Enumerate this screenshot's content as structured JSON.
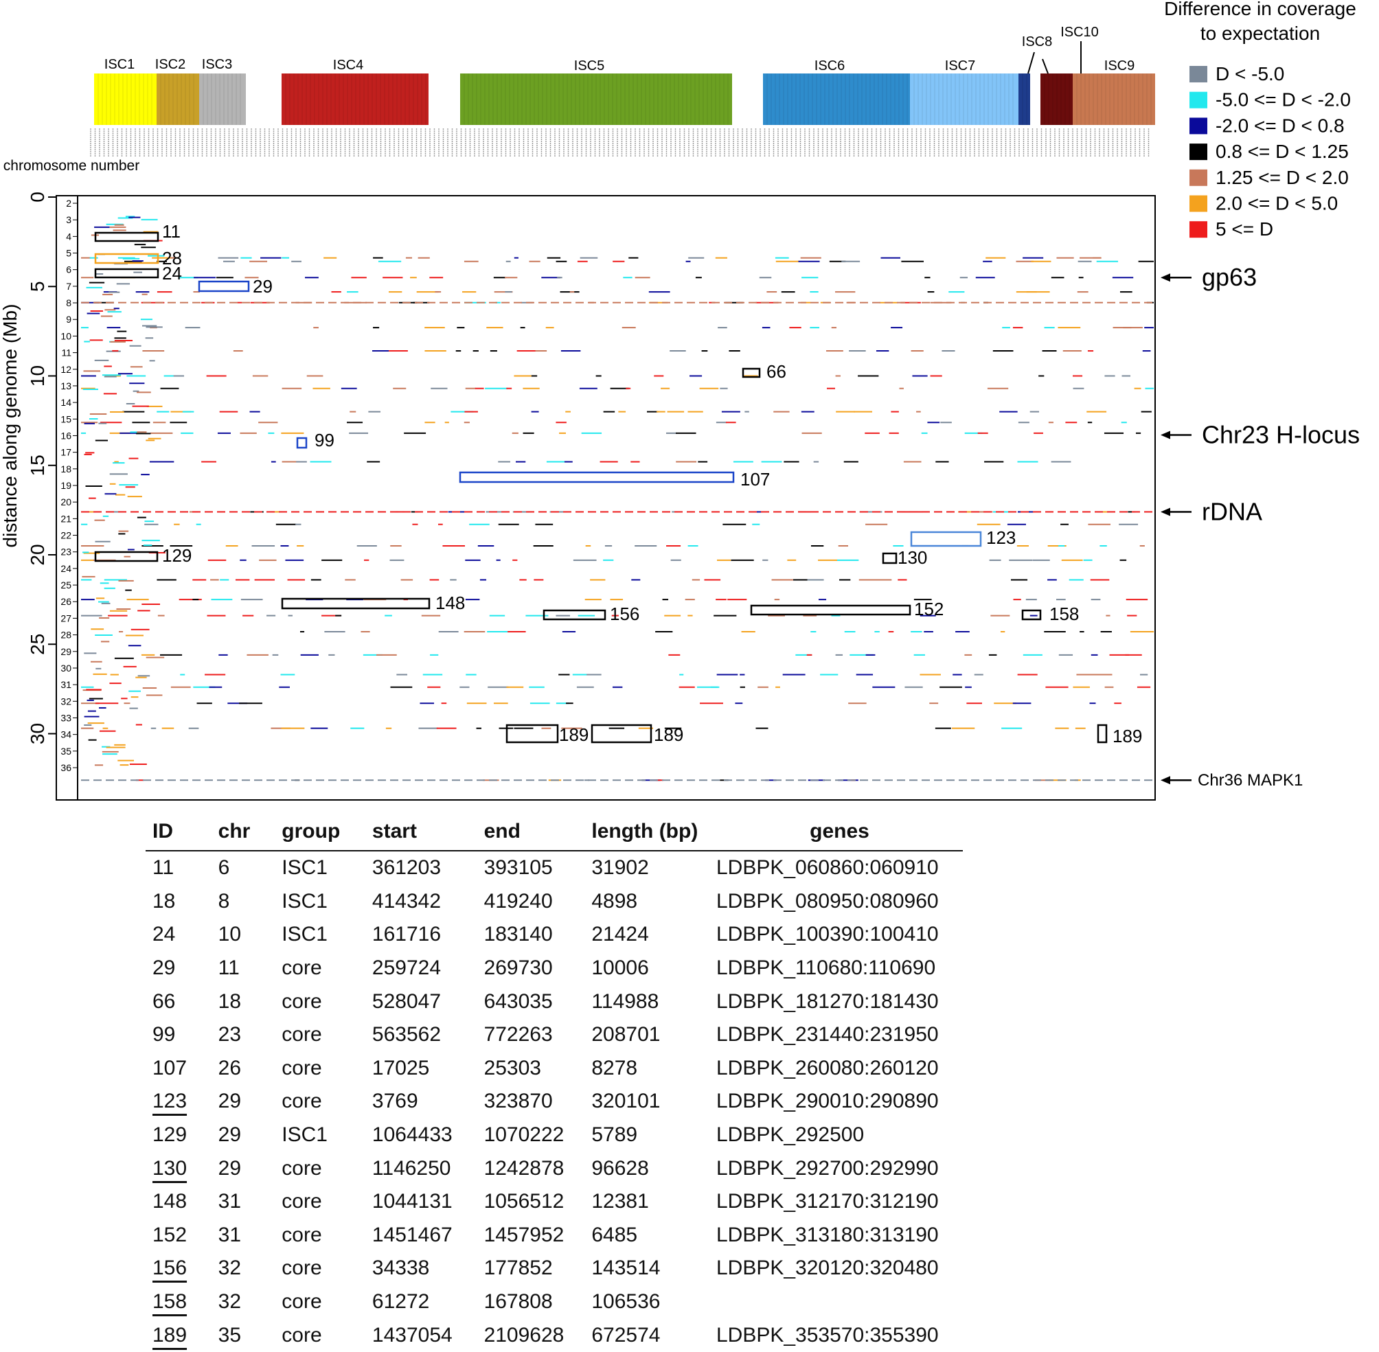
{
  "chart_data": {
    "type": "heatmap",
    "yaxis": {
      "label": "distance along genome (Mb)",
      "ticks": [
        "0",
        "5",
        "10",
        "15",
        "20",
        "25",
        "30"
      ],
      "range": [
        0,
        33
      ]
    },
    "chromosome_label": "chromosome number",
    "chromosome_ticks": [
      "2",
      "3",
      "4",
      "5",
      "6",
      "7",
      "8",
      "9",
      "10",
      "11",
      "12",
      "13",
      "14",
      "15",
      "16",
      "17",
      "18",
      "19",
      "20",
      "21",
      "22",
      "23",
      "24",
      "25",
      "26",
      "27",
      "28",
      "29",
      "30",
      "31",
      "32",
      "33",
      "34",
      "35",
      "36"
    ],
    "groups": [
      {
        "name": "ISC1",
        "color": "#ffff00"
      },
      {
        "name": "ISC2",
        "color": "#c8a028"
      },
      {
        "name": "ISC3",
        "color": "#b4b4b4"
      },
      {
        "name": "ISC4",
        "color": "#c0201e"
      },
      {
        "name": "ISC5",
        "color": "#6ca022"
      },
      {
        "name": "ISC6",
        "color": "#2e8ccc"
      },
      {
        "name": "ISC7",
        "color": "#82c4f8"
      },
      {
        "name": "ISC8",
        "color": "#1e3c8c"
      },
      {
        "name": "ISC10",
        "color": "#6a0c0c"
      },
      {
        "name": "ISC9",
        "color": "#c87850"
      }
    ],
    "legend": {
      "title_line1": "Difference in coverage",
      "title_line2": "to expectation",
      "entries": [
        {
          "label": "D < -5.0",
          "color": "#7a8898"
        },
        {
          "label": "-5.0 <= D < -2.0",
          "color": "#22e8ee"
        },
        {
          "label": "-2.0 <= D < 0.8",
          "color": "#0a0a9a"
        },
        {
          "label": "0.8 <= D < 1.25",
          "color": "#000000"
        },
        {
          "label": "1.25 <= D < 2.0",
          "color": "#c8785a"
        },
        {
          "label": "2.0 <= D < 5.0",
          "color": "#f4a21e"
        },
        {
          "label": "5 <= D",
          "color": "#ee1c1c"
        }
      ]
    },
    "annotations": [
      {
        "text": "gp63",
        "y": 4.5
      },
      {
        "text": "Chr23 H-locus",
        "y": 13.3
      },
      {
        "text": "rDNA",
        "y": 17.6
      },
      {
        "text": "Chr36 MAPK1",
        "y": 32.6
      }
    ],
    "boxes": [
      {
        "id": "11",
        "y": 2.2,
        "color": "#000000"
      },
      {
        "id": "28",
        "y": 3.5,
        "color": "#f4a21e"
      },
      {
        "id": "24",
        "y": 4.2,
        "color": "#000000"
      },
      {
        "id": "29",
        "y": 5.0,
        "color": "#1a44c8"
      },
      {
        "id": "66",
        "y": 9.9,
        "color": "#000000"
      },
      {
        "id": "99",
        "y": 13.5,
        "color": "#1a44c8"
      },
      {
        "id": "107",
        "y": 15.6,
        "color": "#1a44c8"
      },
      {
        "id": "123",
        "y": 18.7,
        "color": "#4a86d8"
      },
      {
        "id": "129",
        "y": 19.8,
        "color": "#000000"
      },
      {
        "id": "130",
        "y": 19.9,
        "color": "#000000"
      },
      {
        "id": "148",
        "y": 22.2,
        "color": "#000000"
      },
      {
        "id": "152",
        "y": 22.6,
        "color": "#000000"
      },
      {
        "id": "156",
        "y": 22.9,
        "color": "#000000"
      },
      {
        "id": "158",
        "y": 22.9,
        "color": "#000000"
      },
      {
        "id": "189",
        "y": 29.6,
        "color": "#000000"
      }
    ]
  },
  "table": {
    "headers": [
      "ID",
      "chr",
      "group",
      "start",
      "end",
      "length (bp)",
      "genes"
    ],
    "rows": [
      {
        "id": "11",
        "chr": "6",
        "group": "ISC1",
        "start": "361203",
        "end": "393105",
        "length": "31902",
        "genes": "LDBPK_060860:060910",
        "underline": false
      },
      {
        "id": "18",
        "chr": "8",
        "group": "ISC1",
        "start": "414342",
        "end": "419240",
        "length": "4898",
        "genes": "LDBPK_080950:080960",
        "underline": false
      },
      {
        "id": "24",
        "chr": "10",
        "group": "ISC1",
        "start": "161716",
        "end": "183140",
        "length": "21424",
        "genes": "LDBPK_100390:100410",
        "underline": false
      },
      {
        "id": "29",
        "chr": "11",
        "group": "core",
        "start": "259724",
        "end": "269730",
        "length": "10006",
        "genes": "LDBPK_110680:110690",
        "underline": false
      },
      {
        "id": "66",
        "chr": "18",
        "group": "core",
        "start": "528047",
        "end": "643035",
        "length": "114988",
        "genes": "LDBPK_181270:181430",
        "underline": false
      },
      {
        "id": "99",
        "chr": "23",
        "group": "core",
        "start": "563562",
        "end": "772263",
        "length": "208701",
        "genes": "LDBPK_231440:231950",
        "underline": false
      },
      {
        "id": "107",
        "chr": "26",
        "group": "core",
        "start": "17025",
        "end": "25303",
        "length": "8278",
        "genes": "LDBPK_260080:260120",
        "underline": false
      },
      {
        "id": "123",
        "chr": "29",
        "group": "core",
        "start": "3769",
        "end": "323870",
        "length": "320101",
        "genes": "LDBPK_290010:290890",
        "underline": true
      },
      {
        "id": "129",
        "chr": "29",
        "group": "ISC1",
        "start": "1064433",
        "end": "1070222",
        "length": "5789",
        "genes": "LDBPK_292500",
        "underline": false
      },
      {
        "id": "130",
        "chr": "29",
        "group": "core",
        "start": "1146250",
        "end": "1242878",
        "length": "96628",
        "genes": "LDBPK_292700:292990",
        "underline": true
      },
      {
        "id": "148",
        "chr": "31",
        "group": "core",
        "start": "1044131",
        "end": "1056512",
        "length": "12381",
        "genes": "LDBPK_312170:312190",
        "underline": false
      },
      {
        "id": "152",
        "chr": "31",
        "group": "core",
        "start": "1451467",
        "end": "1457952",
        "length": "6485",
        "genes": "LDBPK_313180:313190",
        "underline": false
      },
      {
        "id": "156",
        "chr": "32",
        "group": "core",
        "start": "34338",
        "end": "177852",
        "length": "143514",
        "genes": "LDBPK_320120:320480",
        "underline": true
      },
      {
        "id": "158",
        "chr": "32",
        "group": "core",
        "start": "61272",
        "end": "167808",
        "length": "106536",
        "genes": "",
        "underline": true
      },
      {
        "id": "189",
        "chr": "35",
        "group": "core",
        "start": "1437054",
        "end": "2109628",
        "length": "672574",
        "genes": "LDBPK_353570:355390",
        "underline": true
      }
    ]
  }
}
